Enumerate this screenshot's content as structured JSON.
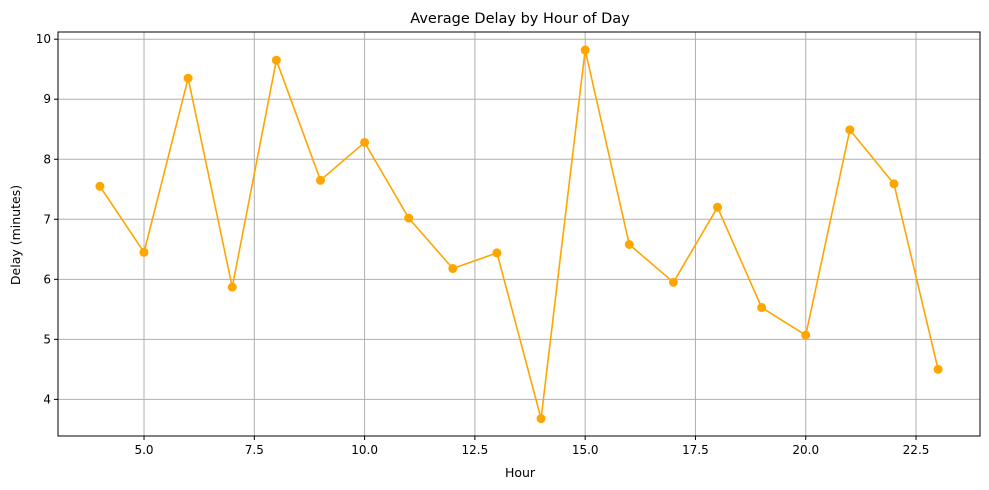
{
  "chart_data": {
    "type": "line",
    "title": "Average Delay by Hour of Day",
    "xlabel": "Hour",
    "ylabel": "Delay (minutes)",
    "xlim": [
      3.05,
      23.95
    ],
    "ylim": [
      3.39,
      10.12
    ],
    "xticks": [
      5.0,
      7.5,
      10.0,
      12.5,
      15.0,
      17.5,
      20.0,
      22.5
    ],
    "xtick_labels": [
      "5.0",
      "7.5",
      "10.0",
      "12.5",
      "15.0",
      "17.5",
      "20.0",
      "22.5"
    ],
    "yticks": [
      4,
      5,
      6,
      7,
      8,
      9,
      10
    ],
    "ytick_labels": [
      "4",
      "5",
      "6",
      "7",
      "8",
      "9",
      "10"
    ],
    "grid": true,
    "series": [
      {
        "color": "#ffa500",
        "marker": "circle",
        "x": [
          4,
          5,
          6,
          7,
          8,
          9,
          10,
          11,
          12,
          13,
          14,
          15,
          16,
          17,
          18,
          19,
          20,
          21,
          22,
          23
        ],
        "y": [
          7.55,
          6.45,
          9.35,
          5.87,
          9.65,
          7.65,
          8.28,
          7.02,
          6.18,
          6.44,
          3.68,
          9.82,
          6.58,
          5.95,
          7.2,
          5.53,
          5.07,
          8.49,
          7.59,
          4.5
        ]
      }
    ]
  }
}
